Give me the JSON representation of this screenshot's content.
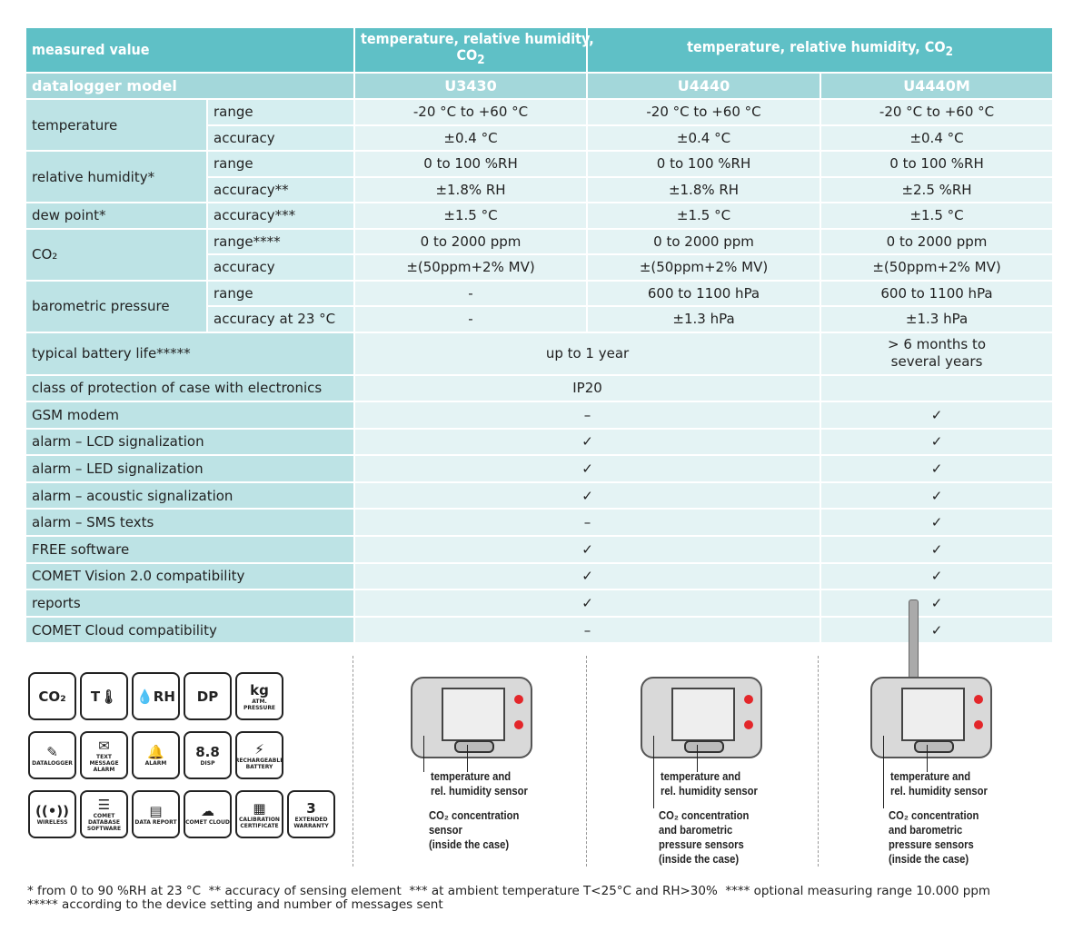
{
  "header": {
    "measured_value": "measured value",
    "col_u3430": "temperature, relative humidity,",
    "col_u3430_co2": "CO",
    "col_u4440": "temperature, relative humidity, CO",
    "sub2": "2"
  },
  "models": {
    "label": "datalogger model",
    "items": [
      "U3430",
      "U4440",
      "U4440M"
    ]
  },
  "spec_rows": [
    {
      "group": "temperature",
      "span": 2,
      "param": "range",
      "values": [
        "-20 °C to +60 °C",
        "-20 °C to +60 °C",
        "-20 °C to +60 °C"
      ]
    },
    {
      "param": "accuracy",
      "values": [
        "±0.4 °C",
        "±0.4 °C",
        "±0.4 °C"
      ]
    },
    {
      "group": "relative humidity*",
      "span": 2,
      "param": "range",
      "values": [
        "0 to 100 %RH",
        "0 to 100 %RH",
        "0 to 100 %RH"
      ]
    },
    {
      "param": "accuracy**",
      "values": [
        "±1.8% RH",
        "±1.8% RH",
        "±2.5 %RH"
      ]
    },
    {
      "group": "dew point*",
      "span": 1,
      "param": "accuracy***",
      "values": [
        "±1.5 °C",
        "±1.5 °C",
        "±1.5 °C"
      ]
    },
    {
      "group": "CO₂",
      "span": 2,
      "param": "range****",
      "values": [
        "0 to 2000 ppm",
        "0 to 2000 ppm",
        "0 to 2000 ppm"
      ]
    },
    {
      "param": "accuracy",
      "values": [
        "±(50ppm+2% MV)",
        "±(50ppm+2% MV)",
        "±(50ppm+2% MV)"
      ]
    },
    {
      "group": "barometric pressure",
      "span": 2,
      "param": "range",
      "values": [
        "-",
        "600 to 1100 hPa",
        "600 to 1100 hPa"
      ]
    },
    {
      "param": "accuracy at 23 °C",
      "values": [
        "-",
        "±1.3 hPa",
        "±1.3 hPa"
      ]
    }
  ],
  "battery": {
    "label": "typical battery life*****",
    "shared": "up to 1 year",
    "u4440m_line1": "> 6 months to",
    "u4440m_line2": "several years"
  },
  "features": [
    {
      "label": "class of protection of case with electronics",
      "shared": "IP20",
      "u4440m": ""
    },
    {
      "label": "GSM modem",
      "shared": "–",
      "u4440m": "✓"
    },
    {
      "label": "alarm – LCD signalization",
      "shared": "✓",
      "u4440m": "✓"
    },
    {
      "label": "alarm – LED signalization",
      "shared": "✓",
      "u4440m": "✓"
    },
    {
      "label": "alarm – acoustic signalization",
      "shared": "✓",
      "u4440m": "✓"
    },
    {
      "label": "alarm – SMS texts",
      "shared": "–",
      "u4440m": "✓"
    },
    {
      "label": "FREE software",
      "shared": "✓",
      "u4440m": "✓"
    },
    {
      "label": "COMET Vision 2.0 compatibility",
      "shared": "✓",
      "u4440m": "✓"
    },
    {
      "label": "reports",
      "shared": "✓",
      "u4440m": "✓"
    },
    {
      "label": "COMET Cloud compatibility",
      "shared": "–",
      "u4440m": "✓"
    }
  ],
  "icons": [
    {
      "name": "co2",
      "glyph": "CO₂",
      "label": ""
    },
    {
      "name": "temperature",
      "glyph": "T🌡",
      "label": ""
    },
    {
      "name": "humidity",
      "glyph": "💧RH",
      "label": ""
    },
    {
      "name": "dew-point",
      "glyph": "DP",
      "label": ""
    },
    {
      "name": "pressure",
      "glyph": "kg",
      "label": "ATM. PRESSURE"
    },
    {
      "name": "spacer",
      "glyph": "",
      "label": ""
    },
    {
      "name": "datalogger",
      "glyph": "✎",
      "label": "DATALOGGER"
    },
    {
      "name": "sms",
      "glyph": "✉",
      "label": "TEXT MESSAGE ALARM"
    },
    {
      "name": "alarm",
      "glyph": "🔔",
      "label": "ALARM"
    },
    {
      "name": "display",
      "glyph": "8.8",
      "label": "DISP"
    },
    {
      "name": "battery",
      "glyph": "⚡",
      "label": "RECHARGEABLE BATTERY"
    },
    {
      "name": "spacer",
      "glyph": "",
      "label": ""
    },
    {
      "name": "wireless",
      "glyph": "((•))",
      "label": "WIRELESS"
    },
    {
      "name": "database",
      "glyph": "☰",
      "label": "COMET DATABASE SOFTWARE"
    },
    {
      "name": "report",
      "glyph": "▤",
      "label": "DATA REPORT"
    },
    {
      "name": "cloud",
      "glyph": "☁",
      "label": "COMET CLOUD"
    },
    {
      "name": "certificate",
      "glyph": "▦",
      "label": "CALIBRATION CERTIFICATE"
    },
    {
      "name": "warranty",
      "glyph": "3",
      "label": "EXTENDED WARRANTY"
    }
  ],
  "devices": [
    {
      "sensor1": "temperature and\nrel. humidity sensor",
      "sensor2": "CO₂ concentration\nsensor\n(inside the case)"
    },
    {
      "sensor1": "temperature and\nrel. humidity sensor",
      "sensor2": "CO₂ concentration\nand barometric\npressure sensors\n(inside the case)"
    },
    {
      "sensor1": "temperature and\nrel. humidity sensor",
      "sensor2": "CO₂ concentration\nand barometric\npressure sensors\n(inside the case)"
    }
  ],
  "footnotes": {
    "line1": "* from 0 to 90 %RH at 23 °C  ** accuracy of sensing element  *** at ambient temperature T<25°C and RH>30%  **** optional measuring range 10.000 ppm",
    "line2": "***** according to the device setting and number of messages sent"
  },
  "colors": {
    "header": "#5fc0c6",
    "model_row": "#a3d7da",
    "label_cell": "#bde3e5",
    "value_cell": "#e4f3f4",
    "button_red": "#e3262a"
  }
}
